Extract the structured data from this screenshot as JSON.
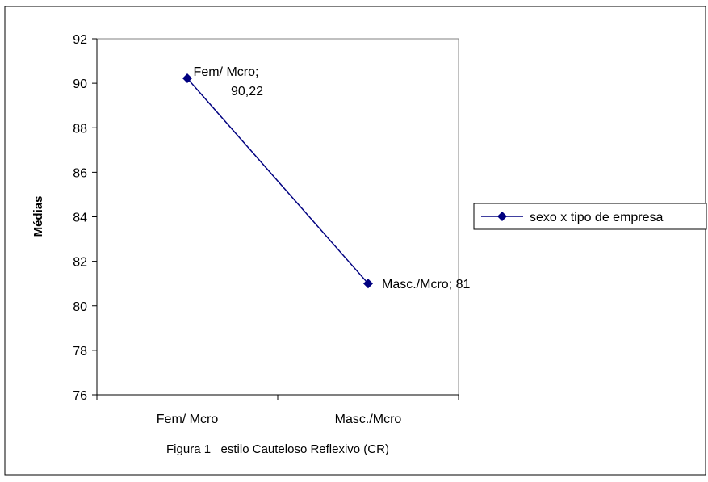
{
  "chart_data": {
    "type": "line",
    "categories": [
      "Fem/ Mcro",
      "Masc./Mcro"
    ],
    "series": [
      {
        "name": "sexo x tipo de empresa",
        "values": [
          90.22,
          81
        ],
        "color": "#000080"
      }
    ],
    "data_labels": [
      "Fem/ Mcro;",
      "90,22",
      "Masc./Mcro; 81"
    ],
    "y_ticks": [
      "76",
      "78",
      "80",
      "82",
      "84",
      "86",
      "88",
      "90",
      "92"
    ],
    "ylim": [
      76,
      92
    ],
    "ylabel": "Médias",
    "xlabel": "Figura 1_ estilo Cauteloso Reflexivo (CR)",
    "grid": false,
    "legend_position": "right",
    "marker": "diamond"
  }
}
